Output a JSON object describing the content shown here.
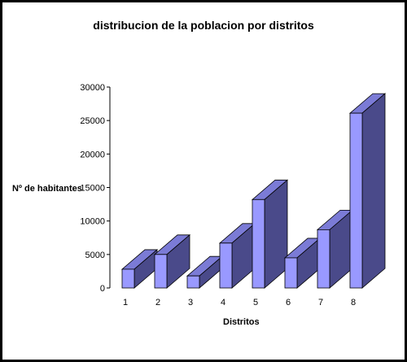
{
  "chart_data": {
    "type": "bar",
    "title": "distribucion de la poblacion por distritos",
    "xlabel": "Distritos",
    "ylabel": "Nº de habitantes",
    "categories": [
      "1",
      "2",
      "3",
      "4",
      "5",
      "6",
      "7",
      "8"
    ],
    "values": [
      2800,
      5000,
      1800,
      6700,
      13200,
      4500,
      8700,
      26100
    ],
    "ylim": [
      0,
      30000
    ],
    "yticks": [
      0,
      5000,
      10000,
      15000,
      20000,
      25000,
      30000
    ],
    "grid": false,
    "legend": "none",
    "colors": {
      "front": "#9999ff",
      "top": "#7b7bd6",
      "side": "#4a4a8a",
      "background": "#000000"
    }
  }
}
